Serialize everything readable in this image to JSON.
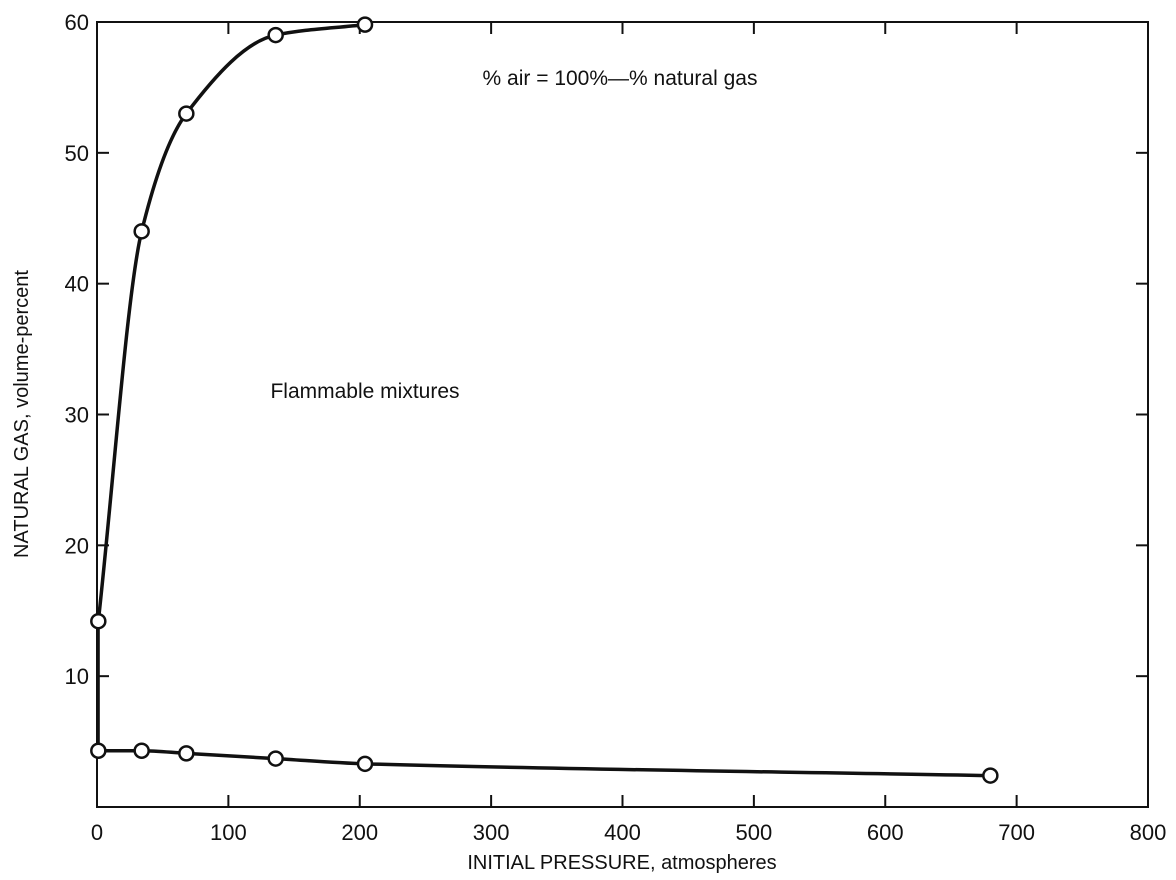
{
  "chart_data": {
    "type": "line",
    "title": "",
    "xlabel": "INITIAL PRESSURE, atmospheres",
    "ylabel": "NATURAL GAS, volume-percent",
    "xlim": [
      0,
      800
    ],
    "ylim": [
      0,
      60
    ],
    "xticks": [
      0,
      100,
      200,
      300,
      400,
      500,
      600,
      700,
      800
    ],
    "yticks": [
      10,
      20,
      30,
      40,
      50,
      60
    ],
    "grid": false,
    "series": [
      {
        "name": "",
        "x": [
          1,
          34,
          68,
          136,
          204
        ],
        "y": [
          14.2,
          44,
          53,
          59,
          59.8
        ]
      },
      {
        "name": "",
        "x": [
          1,
          34,
          68,
          136,
          204,
          680
        ],
        "y": [
          4.3,
          4.3,
          4.1,
          3.7,
          3.3,
          2.4
        ]
      }
    ],
    "annotations": [
      {
        "text": "% air = 100%—% natural gas",
        "x": 420,
        "y": 57.8
      },
      {
        "text": "Flammable mixtures",
        "x": 185,
        "y": 31.5
      }
    ],
    "colors": {
      "line": "#111111",
      "marker_fill": "#ffffff"
    }
  }
}
